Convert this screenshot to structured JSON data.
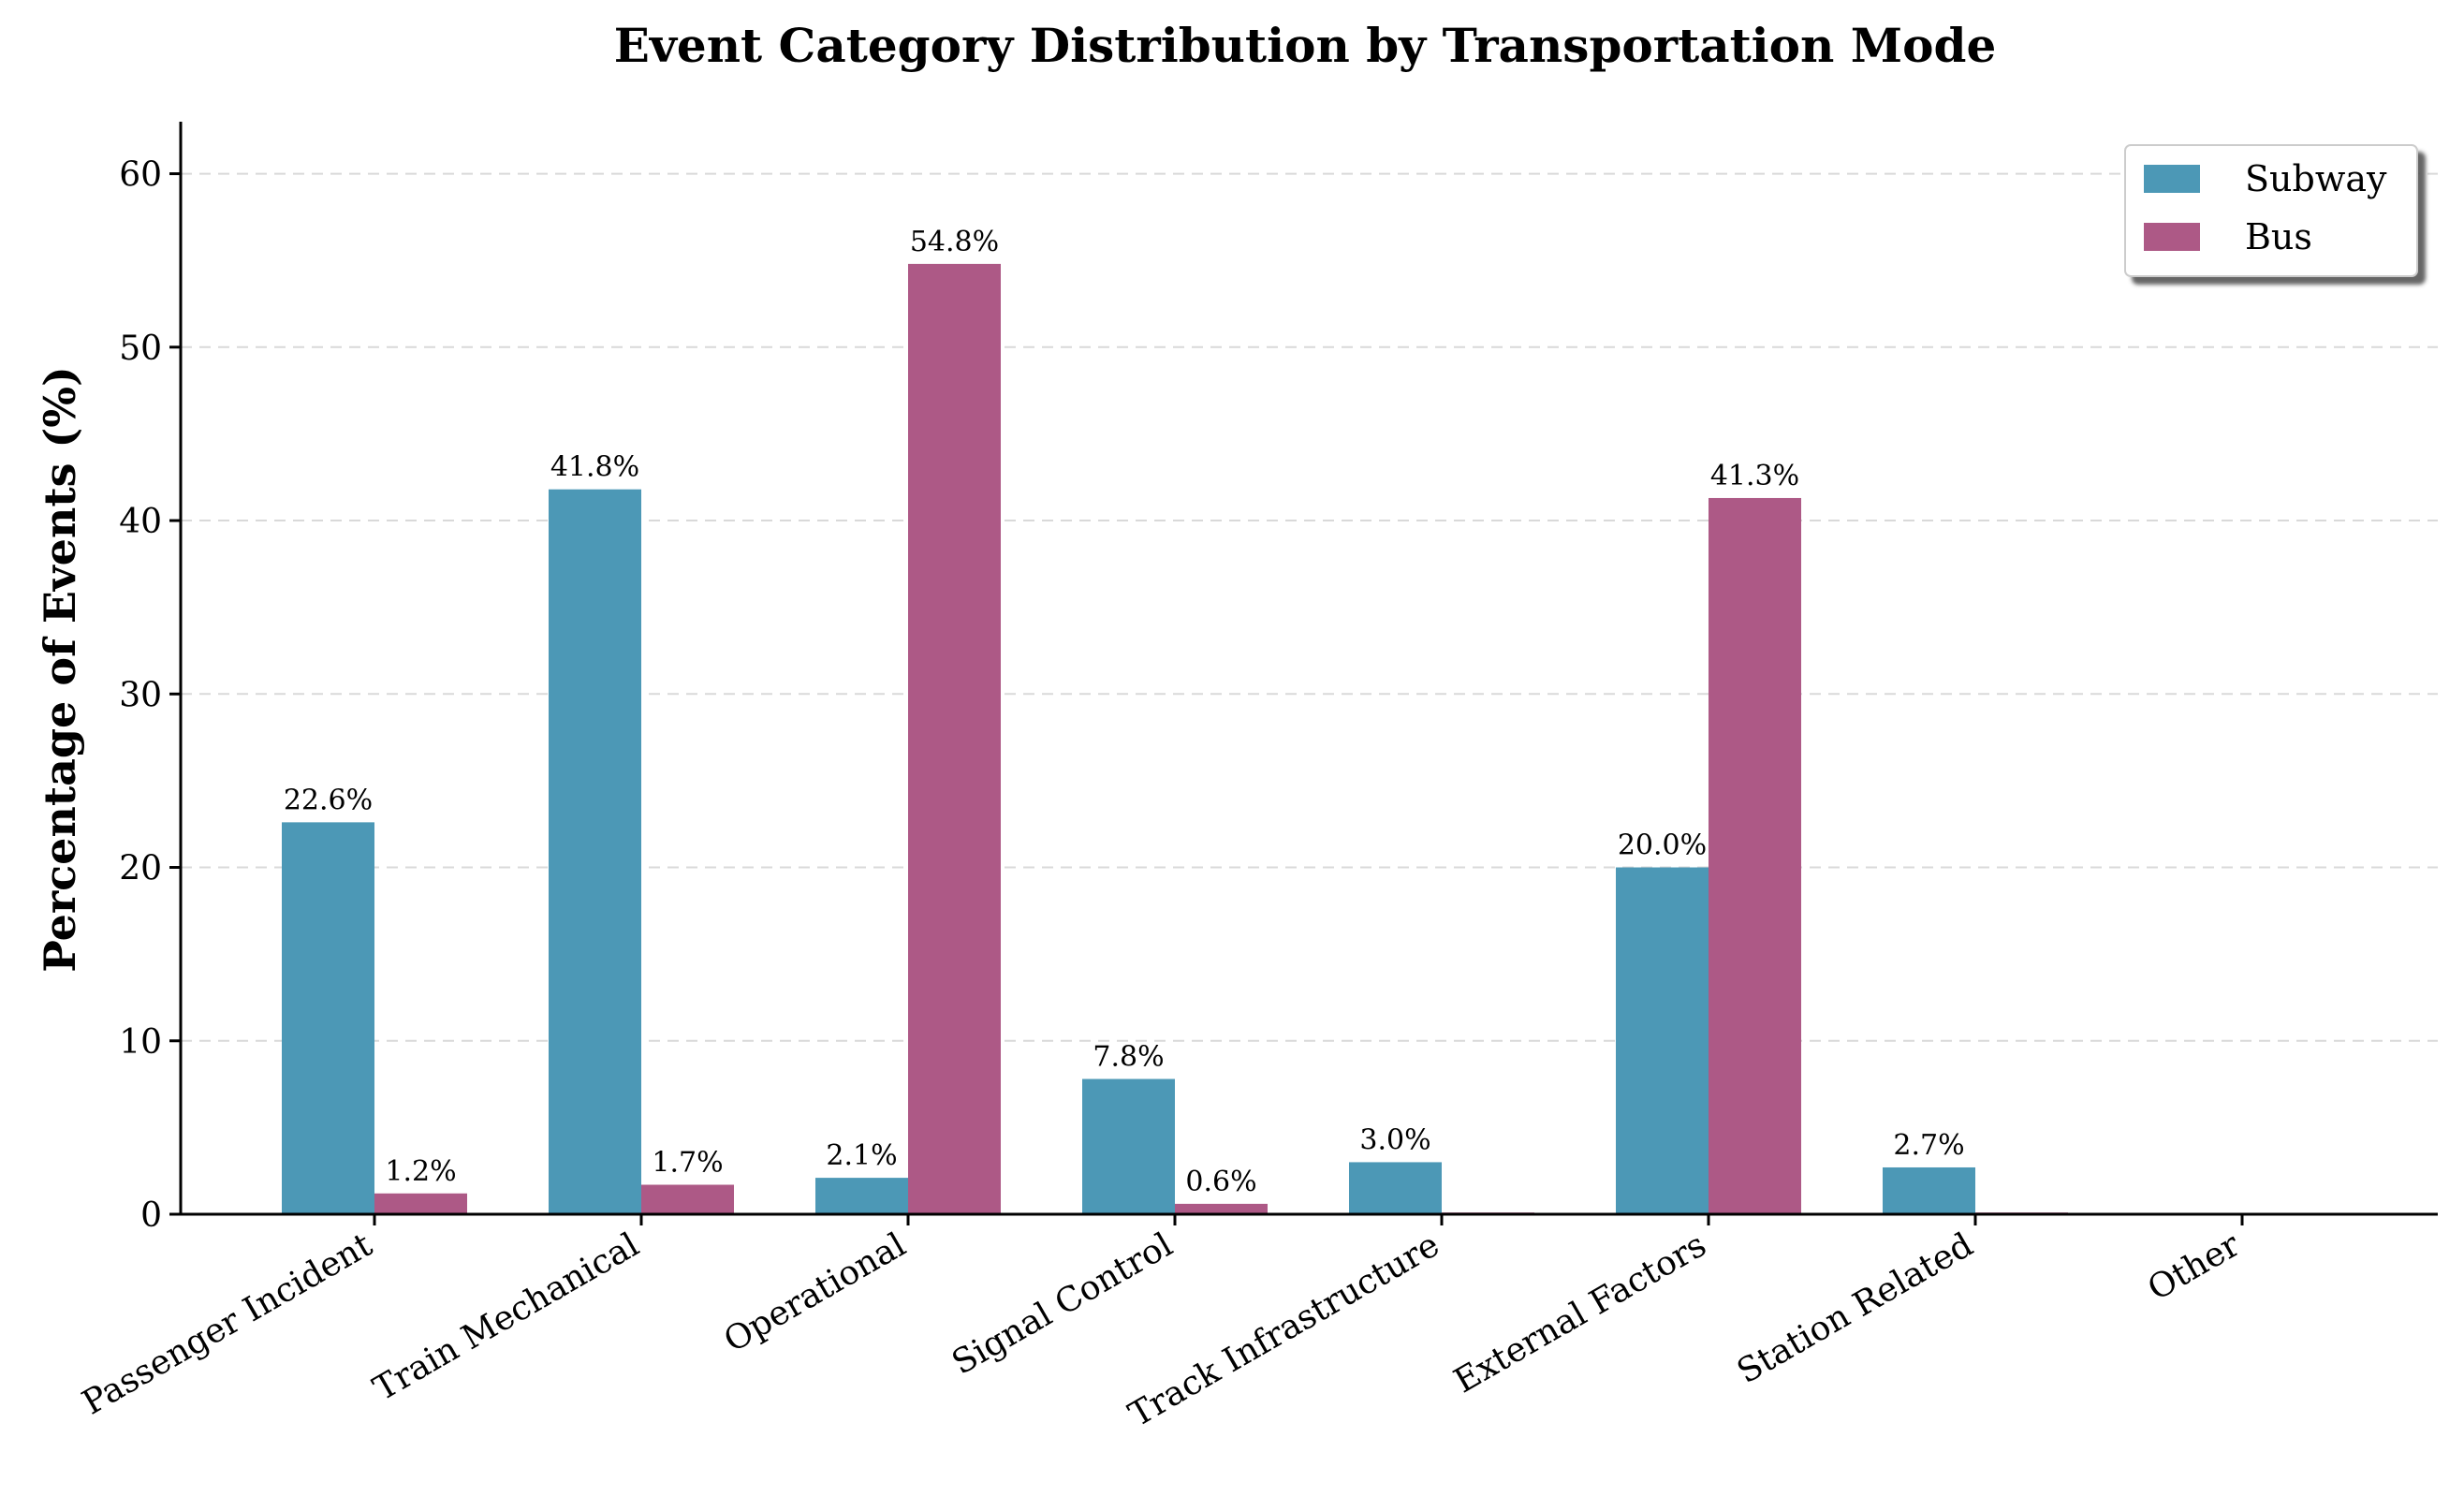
{
  "chart_data": {
    "type": "bar",
    "title": "Event Category Distribution by Transportation Mode",
    "xlabel": "",
    "ylabel": "Percentage of Events (%)",
    "ylim": [
      0,
      63
    ],
    "yticks": [
      0,
      10,
      20,
      30,
      40,
      50,
      60
    ],
    "grid": "horizontal dashed",
    "legend_position": "top-right",
    "categories": [
      "Passenger Incident",
      "Train Mechanical",
      "Operational",
      "Signal Control",
      "Track Infrastructure",
      "External Factors",
      "Station Related",
      "Other"
    ],
    "series": [
      {
        "name": "Subway",
        "color": "#4c98b6",
        "values": [
          22.6,
          41.8,
          2.1,
          7.8,
          3.0,
          20.0,
          2.7,
          0.0
        ],
        "labels": [
          "22.6%",
          "41.8%",
          "2.1%",
          "7.8%",
          "3.0%",
          "20.0%",
          "2.7%",
          ""
        ]
      },
      {
        "name": "Bus",
        "color": "#ad5986",
        "values": [
          1.2,
          1.7,
          54.8,
          0.6,
          0.1,
          41.3,
          0.1,
          0.0
        ],
        "labels": [
          "1.2%",
          "1.7%",
          "54.8%",
          "0.6%",
          "",
          "41.3%",
          "",
          ""
        ]
      }
    ]
  }
}
